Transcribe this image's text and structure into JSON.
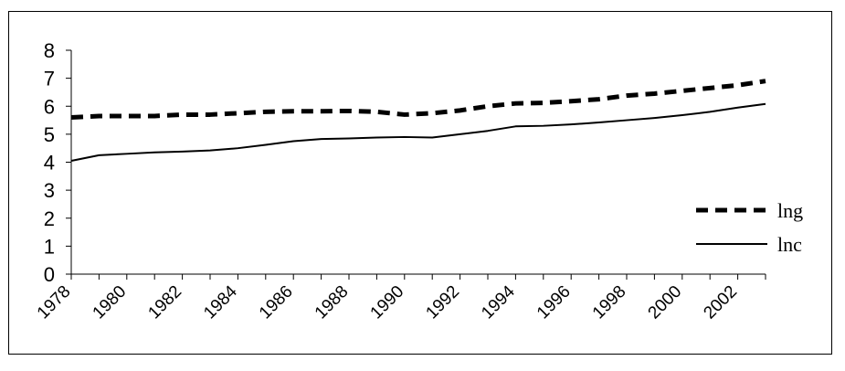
{
  "chart_data": {
    "type": "line",
    "title": "",
    "xlabel": "",
    "ylabel": "",
    "x": [
      1978,
      1979,
      1980,
      1981,
      1982,
      1983,
      1984,
      1985,
      1986,
      1987,
      1988,
      1989,
      1990,
      1991,
      1992,
      1993,
      1994,
      1995,
      1996,
      1997,
      1998,
      1999,
      2000,
      2001,
      2002,
      2003
    ],
    "x_tick_labels": [
      "1978",
      "1980",
      "1982",
      "1984",
      "1986",
      "1988",
      "1990",
      "1992",
      "1994",
      "1996",
      "1998",
      "2000",
      "2002"
    ],
    "y_tick_labels": [
      "0",
      "1",
      "2",
      "3",
      "4",
      "5",
      "6",
      "7",
      "8"
    ],
    "ylim": [
      0,
      8
    ],
    "xlim": [
      1978,
      2003
    ],
    "grid": false,
    "legend_position": "right",
    "series": [
      {
        "name": "lng",
        "style": "dashed",
        "color": "#000000",
        "values": [
          5.6,
          5.65,
          5.65,
          5.65,
          5.7,
          5.7,
          5.75,
          5.8,
          5.82,
          5.82,
          5.83,
          5.8,
          5.7,
          5.75,
          5.85,
          6.0,
          6.1,
          6.12,
          6.18,
          6.25,
          6.38,
          6.45,
          6.55,
          6.65,
          6.75,
          6.9
        ]
      },
      {
        "name": "lnc",
        "style": "solid",
        "color": "#000000",
        "values": [
          4.05,
          4.25,
          4.3,
          4.35,
          4.38,
          4.42,
          4.5,
          4.62,
          4.75,
          4.83,
          4.85,
          4.88,
          4.9,
          4.88,
          5.0,
          5.12,
          5.28,
          5.3,
          5.35,
          5.42,
          5.5,
          5.58,
          5.68,
          5.8,
          5.95,
          6.08
        ]
      }
    ]
  }
}
